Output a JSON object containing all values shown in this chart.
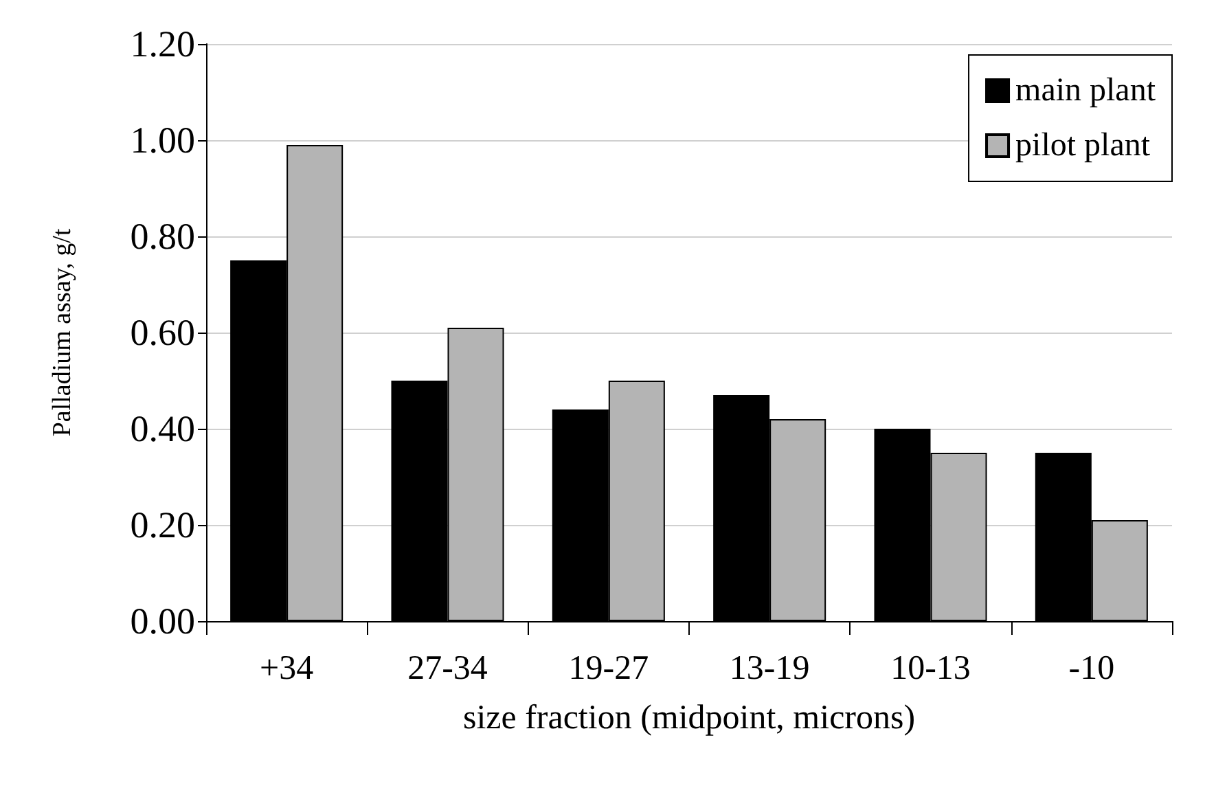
{
  "chart_data": {
    "type": "bar",
    "xlabel": "size fraction (midpoint, microns)",
    "ylabel": "Palladium assay, g/t",
    "categories": [
      "+34",
      "27-34",
      "19-27",
      "13-19",
      "10-13",
      "-10"
    ],
    "series": [
      {
        "name": "main plant",
        "color": "#000000",
        "values": [
          0.75,
          0.5,
          0.44,
          0.47,
          0.4,
          0.35
        ]
      },
      {
        "name": "pilot plant",
        "color": "#b4b4b4",
        "values": [
          0.99,
          0.61,
          0.5,
          0.42,
          0.35,
          0.21
        ]
      }
    ],
    "ylim": [
      0,
      1.2
    ],
    "yticks": [
      {
        "value": 0,
        "label": "0.00"
      },
      {
        "value": 0.2,
        "label": "0.20"
      },
      {
        "value": 0.4,
        "label": "0.40"
      },
      {
        "value": 0.6,
        "label": "0.60"
      },
      {
        "value": 0.8,
        "label": "0.80"
      },
      {
        "value": 1.0,
        "label": "1.00"
      },
      {
        "value": 1.2,
        "label": "1.20"
      }
    ],
    "grid": "y",
    "legend": "top right"
  }
}
